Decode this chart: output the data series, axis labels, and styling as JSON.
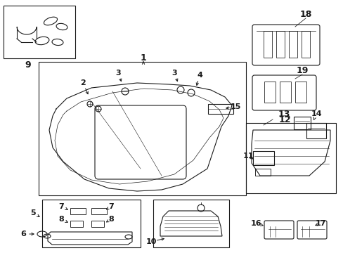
{
  "bg_color": "#ffffff",
  "line_color": "#1a1a1a",
  "lw": 0.8,
  "fig_w": 4.89,
  "fig_h": 3.6,
  "dpi": 100
}
